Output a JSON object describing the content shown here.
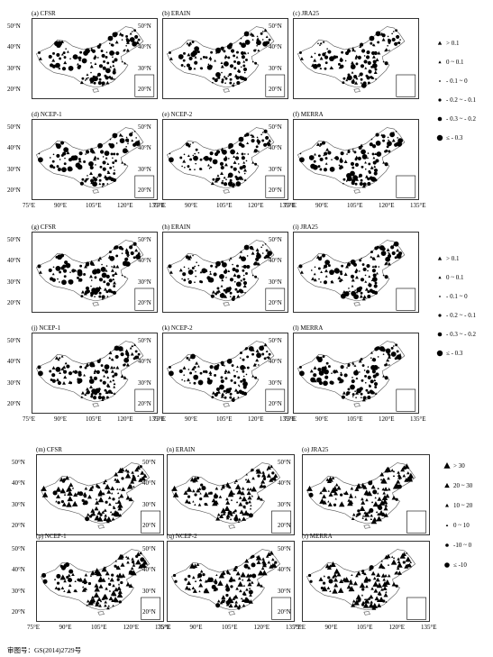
{
  "groups": [
    {
      "panels": [
        {
          "label": "(a) CFSR"
        },
        {
          "label": "(b) ERAIN"
        },
        {
          "label": "(c) JRA25"
        },
        {
          "label": "(d) NCEP-1"
        },
        {
          "label": "(e) NCEP-2"
        },
        {
          "label": "(f) MERRA"
        }
      ],
      "legend": [
        {
          "symbol": "triangle",
          "size": 2.2,
          "text": "> 0.1"
        },
        {
          "symbol": "triangle",
          "size": 1.6,
          "text": "0 ~ 0.1"
        },
        {
          "symbol": "dot",
          "size": 0.9,
          "text": "- 0.1 ~ 0"
        },
        {
          "symbol": "dot",
          "size": 1.6,
          "text": "- 0.2 ~ - 0.1"
        },
        {
          "symbol": "dot",
          "size": 2.3,
          "text": "- 0.3 ~ - 0.2"
        },
        {
          "symbol": "dot",
          "size": 3.2,
          "text": "≤ - 0.3"
        }
      ]
    },
    {
      "panels": [
        {
          "label": "(g) CFSR"
        },
        {
          "label": "(h) ERAIN"
        },
        {
          "label": "(i) JRA25"
        },
        {
          "label": "(j) NCEP-1"
        },
        {
          "label": "(k) NCEP-2"
        },
        {
          "label": "(l) MERRA"
        }
      ],
      "legend": [
        {
          "symbol": "triangle",
          "size": 2.2,
          "text": "> 0.1"
        },
        {
          "symbol": "triangle",
          "size": 1.6,
          "text": "0 ~ 0.1"
        },
        {
          "symbol": "dot",
          "size": 0.9,
          "text": "- 0.1 ~ 0"
        },
        {
          "symbol": "dot",
          "size": 1.6,
          "text": "- 0.2 ~ - 0.1"
        },
        {
          "symbol": "dot",
          "size": 2.3,
          "text": "- 0.3 ~ - 0.2"
        },
        {
          "symbol": "dot",
          "size": 3.2,
          "text": "≤ - 0.3"
        }
      ]
    },
    {
      "panels": [
        {
          "label": "(m) CFSR"
        },
        {
          "label": "(n) ERAIN"
        },
        {
          "label": "(o) JRA25"
        },
        {
          "label": "(p) NCEP-1"
        },
        {
          "label": "(q) NCEP-2"
        },
        {
          "label": "(r) MERRA"
        }
      ],
      "legend": [
        {
          "symbol": "triangle",
          "size": 3.6,
          "text": "> 30"
        },
        {
          "symbol": "triangle",
          "size": 2.8,
          "text": "20 ~ 30"
        },
        {
          "symbol": "triangle",
          "size": 2.0,
          "text": "10 ~ 20"
        },
        {
          "symbol": "triangle",
          "size": 1.3,
          "text": "0 ~ 10"
        },
        {
          "symbol": "dot",
          "size": 1.8,
          "text": "-10 ~ 0"
        },
        {
          "symbol": "dot",
          "size": 2.8,
          "text": "≤ -10"
        }
      ]
    }
  ],
  "y_ticks": [
    "50°N",
    "40°N",
    "30°N",
    "20°N"
  ],
  "x_ticks": [
    "75°E",
    "90°E",
    "105°E",
    "120°E",
    "135°E"
  ],
  "approval_number": "审图号：GS(2014)2729号"
}
